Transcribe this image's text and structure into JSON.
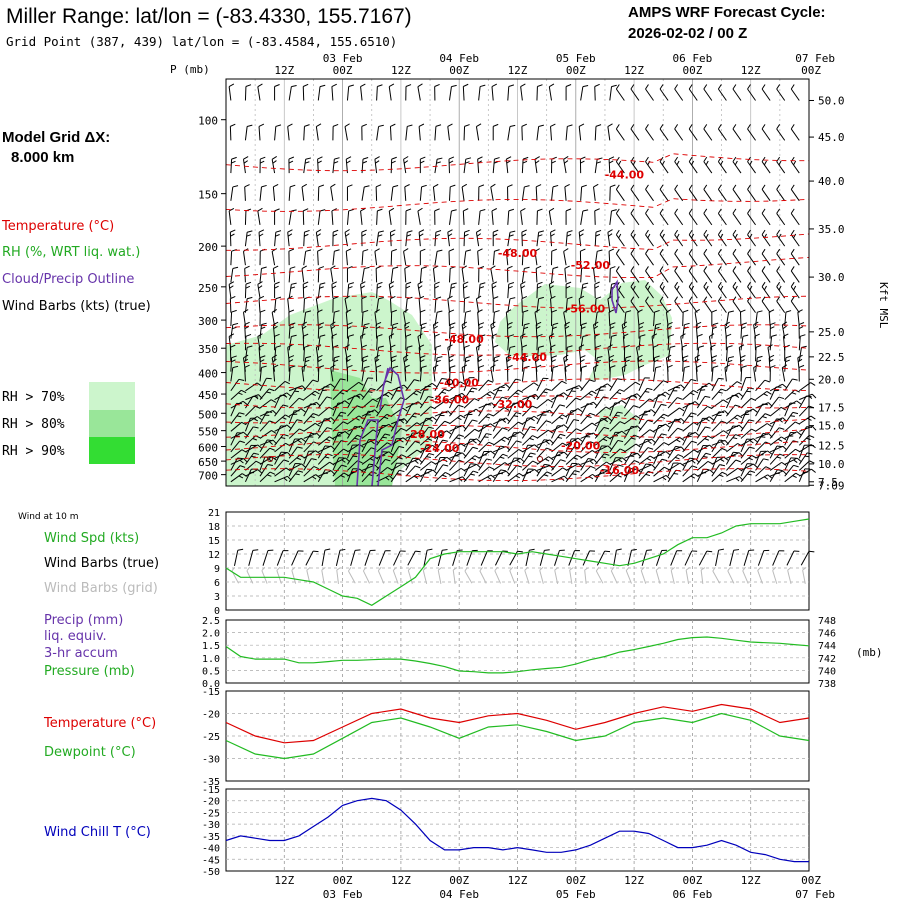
{
  "header": {
    "title": "Miller Range:  lat/lon = (-83.4330, 155.7167)",
    "gridpoint": "Grid Point (387, 439) lat/lon = (-83.4584, 155.6510)",
    "amps_line1": "AMPS WRF Forecast Cycle:",
    "amps_line2": "2026-02-02 / 00  Z"
  },
  "left_labels": {
    "model_grid_line1": "Model Grid ΔX:",
    "model_grid_line2": "8.000 km",
    "temperature": "Temperature (°C)",
    "rh": "RH (%, WRT liq. wat.)",
    "cloud": "Cloud/Precip Outline",
    "wind_barbs": "Wind Barbs (kts) (true)",
    "rh70": "RH > 70%",
    "rh80": "RH > 80%",
    "rh90": "RH > 90%",
    "p_axis_label": "P (mb)",
    "height_axis_label": "Kft MSL"
  },
  "time_axis": {
    "hour_labels": [
      "12Z",
      "00Z",
      "12Z",
      "00Z",
      "12Z",
      "00Z",
      "12Z",
      "00Z",
      "12Z",
      "00Z"
    ],
    "date_labels": [
      "03 Feb",
      "04 Feb",
      "05 Feb",
      "06 Feb",
      "07 Feb"
    ]
  },
  "colors": {
    "temperature": "#dd0000",
    "rh_green_text": "#22aa22",
    "cloud_outline": "#6633aa",
    "rh70": "#ccf5cc",
    "rh80": "#99e699",
    "rh90": "#33dd33",
    "wind_speed": "#22bb22",
    "pressure": "#22bb22",
    "dewpoint": "#22bb22",
    "wind_chill": "#0000bb",
    "grid_barbs": "#bbbbbb"
  },
  "chart_data": [
    {
      "type": "cross-section",
      "name": "upper-air",
      "x_hours": [
        0,
        120
      ],
      "ylim_mb": [
        745,
        80
      ],
      "pressure_ticks": [
        100,
        150,
        200,
        250,
        300,
        350,
        400,
        450,
        500,
        550,
        600,
        650,
        700
      ],
      "height_ticks_kft": [
        {
          "label": "50.0",
          "p": 90
        },
        {
          "label": "45.0",
          "p": 110
        },
        {
          "label": "40.0",
          "p": 140
        },
        {
          "label": "35.0",
          "p": 182
        },
        {
          "label": "30.0",
          "p": 237
        },
        {
          "label": "25.0",
          "p": 320
        },
        {
          "label": "22.5",
          "p": 367
        },
        {
          "label": "20.0",
          "p": 415
        },
        {
          "label": "17.5",
          "p": 485
        },
        {
          "label": "15.0",
          "p": 535
        },
        {
          "label": "12.5",
          "p": 597
        },
        {
          "label": "10.0",
          "p": 660
        },
        {
          "label": "7.5",
          "p": 728
        },
        {
          "label": "7.09",
          "p": 742
        }
      ],
      "temperature_labels": [
        {
          "text": "-44.00",
          "x": 82,
          "p": 138
        },
        {
          "text": "-48.00",
          "x": 60,
          "p": 212
        },
        {
          "text": "-52.00",
          "x": 75,
          "p": 227
        },
        {
          "text": "-56.00",
          "x": 74,
          "p": 288
        },
        {
          "text": "-48.00",
          "x": 49,
          "p": 340
        },
        {
          "text": "-44.00",
          "x": 62,
          "p": 375
        },
        {
          "text": "-40.00",
          "x": 48,
          "p": 432
        },
        {
          "text": "-36.00",
          "x": 46,
          "p": 474
        },
        {
          "text": "-32.00",
          "x": 59,
          "p": 486
        },
        {
          "text": "-28.00",
          "x": 41,
          "p": 572
        },
        {
          "text": "-24.00",
          "x": 44,
          "p": 618
        },
        {
          "text": "-20.00",
          "x": 73,
          "p": 610
        },
        {
          "text": "-16.00",
          "x": 81,
          "p": 697
        }
      ]
    },
    {
      "type": "line",
      "name": "wind-10m",
      "ylim": [
        0,
        21
      ],
      "yticks": [
        0,
        3,
        6,
        9,
        12,
        15,
        18,
        21
      ],
      "series": [
        {
          "name": "Wind Spd (kts)",
          "x": [
            0,
            3,
            6,
            9,
            12,
            15,
            18,
            21,
            24,
            27,
            30,
            33,
            36,
            39,
            42,
            45,
            48,
            51,
            54,
            57,
            60,
            63,
            66,
            69,
            72,
            75,
            78,
            81,
            84,
            87,
            90,
            93,
            96,
            99,
            102,
            105,
            108,
            111,
            114,
            117,
            120
          ],
          "values": [
            9,
            7,
            7,
            7,
            7,
            6.5,
            6,
            4.5,
            3,
            2.5,
            1,
            3,
            5,
            7,
            11,
            12,
            12.5,
            12.5,
            12.5,
            12.5,
            12,
            12.5,
            12,
            11.5,
            11,
            10.5,
            10,
            9.5,
            10,
            11,
            12,
            14,
            15.5,
            15.5,
            16.5,
            18,
            18.5,
            18.5,
            18.5,
            19,
            19.5
          ]
        }
      ]
    },
    {
      "type": "line",
      "name": "precip-pressure",
      "ylim_precip": [
        0,
        2.5
      ],
      "yticks_precip": [
        0,
        0.5,
        1.0,
        1.5,
        2.0,
        2.5
      ],
      "ylim_pressure": [
        738,
        748
      ],
      "yticks_pressure": [
        738,
        740,
        742,
        744,
        746,
        748
      ],
      "pressure_unit": "(mb)",
      "series": [
        {
          "name": "Pressure (mb)",
          "x": [
            0,
            3,
            6,
            9,
            12,
            15,
            18,
            21,
            24,
            27,
            30,
            33,
            36,
            39,
            42,
            45,
            48,
            51,
            54,
            57,
            60,
            63,
            66,
            69,
            72,
            75,
            78,
            81,
            84,
            87,
            90,
            93,
            96,
            99,
            102,
            105,
            108,
            111,
            114,
            117,
            120
          ],
          "values": [
            743.8,
            742.2,
            741.8,
            741.8,
            741.8,
            741.2,
            741.2,
            741.4,
            741.6,
            741.6,
            741.7,
            741.8,
            741.8,
            741.5,
            741.1,
            740.6,
            739.9,
            739.8,
            739.6,
            739.6,
            739.8,
            740.1,
            740.3,
            740.5,
            741,
            741.7,
            742.2,
            742.9,
            743.3,
            743.8,
            744.3,
            744.9,
            745.2,
            745.3,
            745.1,
            744.8,
            744.5,
            744.4,
            744.3,
            744.1,
            743.9
          ]
        }
      ]
    },
    {
      "type": "line",
      "name": "temperature-dewpoint",
      "ylim": [
        -35,
        -15
      ],
      "yticks": [
        -35,
        -30,
        -25,
        -20,
        -15
      ],
      "series": [
        {
          "name": "Temperature (°C)",
          "x": [
            0,
            6,
            12,
            18,
            24,
            30,
            36,
            42,
            48,
            54,
            60,
            66,
            72,
            78,
            84,
            90,
            96,
            102,
            108,
            114,
            120
          ],
          "values": [
            -22,
            -25,
            -26.5,
            -26,
            -23,
            -20,
            -19,
            -21,
            -22,
            -20.5,
            -20,
            -21.5,
            -23.5,
            -22,
            -20,
            -18.5,
            -19.5,
            -18,
            -19,
            -22,
            -21
          ]
        },
        {
          "name": "Dewpoint (°C)",
          "x": [
            0,
            6,
            12,
            18,
            24,
            30,
            36,
            42,
            48,
            54,
            60,
            66,
            72,
            78,
            84,
            90,
            96,
            102,
            108,
            114,
            120
          ],
          "values": [
            -26,
            -29,
            -30,
            -29,
            -25.5,
            -22,
            -21,
            -23,
            -25.5,
            -23,
            -22.5,
            -24,
            -26,
            -25,
            -22,
            -21,
            -22,
            -20,
            -21.5,
            -25,
            -26
          ]
        }
      ]
    },
    {
      "type": "line",
      "name": "wind-chill",
      "ylim": [
        -50,
        -15
      ],
      "yticks": [
        -15,
        -20,
        -25,
        -30,
        -35,
        -40,
        -45,
        -50
      ],
      "series": [
        {
          "name": "Wind Chill T (°C)",
          "x": [
            0,
            3,
            6,
            9,
            12,
            15,
            18,
            21,
            24,
            27,
            30,
            33,
            36,
            39,
            42,
            45,
            48,
            51,
            54,
            57,
            60,
            63,
            66,
            69,
            72,
            75,
            78,
            81,
            84,
            87,
            90,
            93,
            96,
            99,
            102,
            105,
            108,
            111,
            114,
            117,
            120
          ],
          "values": [
            -37,
            -35,
            -36,
            -37,
            -37,
            -35,
            -31,
            -27,
            -22,
            -20,
            -19,
            -20,
            -24,
            -30,
            -37,
            -41,
            -41,
            -40,
            -40,
            -41,
            -40,
            -41,
            -42,
            -42,
            -41,
            -39,
            -36,
            -33,
            -33,
            -34,
            -37,
            -40,
            -40,
            -39,
            -37,
            -39,
            -42,
            -43,
            -45,
            -46,
            -46
          ]
        }
      ]
    }
  ],
  "panel_labels": {
    "wind10m": "Wind at 10 m",
    "wind_spd": "Wind Spd (kts)",
    "wind_barbs_true": "Wind Barbs (true)",
    "wind_barbs_grid": "Wind Barbs (grid)",
    "precip1": "Precip (mm)",
    "precip2": "liq. equiv.",
    "precip3": "3-hr accum",
    "pressure": "Pressure (mb)",
    "temperature": "Temperature (°C)",
    "dewpoint": "Dewpoint (°C)",
    "windchill": "Wind Chill T (°C)"
  }
}
